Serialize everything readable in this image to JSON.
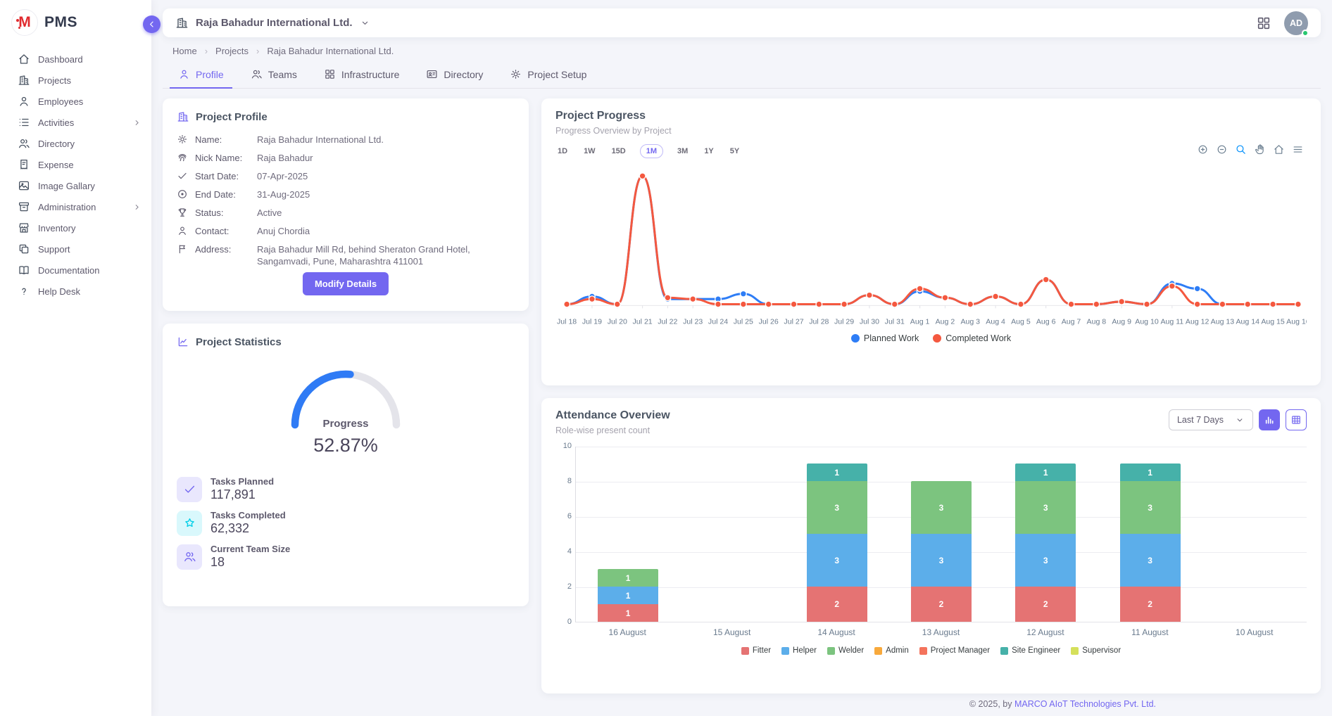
{
  "brand": {
    "logo_mark": "M",
    "logo_text": "PMS"
  },
  "sidebar": {
    "items": [
      {
        "label": "Dashboard",
        "icon": "home",
        "chevron": false
      },
      {
        "label": "Projects",
        "icon": "buildings",
        "chevron": false
      },
      {
        "label": "Employees",
        "icon": "user",
        "chevron": false
      },
      {
        "label": "Activities",
        "icon": "list",
        "chevron": true
      },
      {
        "label": "Directory",
        "icon": "users",
        "chevron": false
      },
      {
        "label": "Expense",
        "icon": "receipt",
        "chevron": false
      },
      {
        "label": "Image Gallary",
        "icon": "photo",
        "chevron": false
      },
      {
        "label": "Administration",
        "icon": "archive",
        "chevron": true
      },
      {
        "label": "Inventory",
        "icon": "store",
        "chevron": false
      },
      {
        "label": "Support",
        "icon": "copy",
        "chevron": false
      },
      {
        "label": "Documentation",
        "icon": "book",
        "chevron": false
      },
      {
        "label": "Help Desk",
        "icon": "help",
        "chevron": false
      }
    ]
  },
  "header": {
    "company_selector": {
      "label": "Raja Bahadur International Ltd.",
      "icon": "buildings"
    },
    "avatar": {
      "initials": "AD",
      "status_color": "#28c76f"
    }
  },
  "breadcrumb": {
    "items": [
      "Home",
      "Projects",
      "Raja Bahadur International Ltd."
    ],
    "separator": "›"
  },
  "tabs": [
    {
      "label": "Profile",
      "icon": "user",
      "active": true
    },
    {
      "label": "Teams",
      "icon": "users",
      "active": false
    },
    {
      "label": "Infrastructure",
      "icon": "grid",
      "active": false
    },
    {
      "label": "Directory",
      "icon": "id-card",
      "active": false
    },
    {
      "label": "Project Setup",
      "icon": "gear",
      "active": false
    }
  ],
  "profile_card": {
    "title": "Project Profile",
    "fields": [
      {
        "icon": "gear",
        "label": "Name:",
        "value": "Raja Bahadur International Ltd."
      },
      {
        "icon": "fingerprint",
        "label": "Nick Name:",
        "value": "Raja Bahadur"
      },
      {
        "icon": "check",
        "label": "Start Date:",
        "value": "07-Apr-2025"
      },
      {
        "icon": "target",
        "label": "End Date:",
        "value": "31-Aug-2025"
      },
      {
        "icon": "trophy",
        "label": "Status:",
        "value": "Active"
      },
      {
        "icon": "user",
        "label": "Contact:",
        "value": "Anuj Chordia"
      },
      {
        "icon": "flag",
        "label": "Address:",
        "value": "Raja Bahadur Mill Rd, behind Sheraton Grand Hotel, Sangamvadi, Pune, Maharashtra 411001"
      }
    ],
    "button": "Modify Details"
  },
  "stats_card": {
    "title": "Project Statistics",
    "gauge": {
      "label": "Progress",
      "value": "52.87%",
      "percent": 52.87,
      "color": "#2f7bf5",
      "track": "#e4e4ea"
    },
    "items": [
      {
        "icon": "check",
        "label": "Tasks Planned",
        "value": "117,891",
        "bg": "#e9e7fd",
        "fg": "#7367f0"
      },
      {
        "icon": "star",
        "label": "Tasks Completed",
        "value": "62,332",
        "bg": "#d9f8fc",
        "fg": "#00cfe8"
      },
      {
        "icon": "users",
        "label": "Current Team Size",
        "value": "18",
        "bg": "#e9e7fd",
        "fg": "#7367f0"
      }
    ]
  },
  "progress_card": {
    "title": "Project Progress",
    "subtitle": "Progress Overview by Project",
    "ranges": [
      "1D",
      "1W",
      "15D",
      "1M",
      "3M",
      "1Y",
      "5Y"
    ],
    "active_range": "1M",
    "toolbar": [
      "zoom-in",
      "zoom-out",
      "selection-zoom",
      "pan",
      "home",
      "menu"
    ]
  },
  "attendance_card": {
    "title": "Attendance Overview",
    "subtitle": "Role-wise present count",
    "select_value": "Last 7 Days",
    "view_buttons": [
      {
        "icon": "bar-chart",
        "active": true
      },
      {
        "icon": "table",
        "active": false
      }
    ]
  },
  "footer": {
    "prefix": "© 2025, by ",
    "link": "MARCO AIoT Technologies Pvt. Ltd."
  },
  "chart_data": [
    {
      "id": "project-progress",
      "type": "line",
      "x": [
        "Jul 18",
        "Jul 19",
        "Jul 20",
        "Jul 21",
        "Jul 22",
        "Jul 23",
        "Jul 24",
        "Jul 25",
        "Jul 26",
        "Jul 27",
        "Jul 28",
        "Jul 29",
        "Jul 30",
        "Jul 31",
        "Aug 1",
        "Aug 2",
        "Aug 3",
        "Aug 4",
        "Aug 5",
        "Aug 6",
        "Aug 7",
        "Aug 8",
        "Aug 9",
        "Aug 10",
        "Aug 11",
        "Aug 12",
        "Aug 13",
        "Aug 14",
        "Aug 15",
        "Aug 16"
      ],
      "series": [
        {
          "name": "Planned Work",
          "color": "#2e7df6",
          "values": [
            1,
            7,
            1,
            100,
            5,
            5,
            5,
            9,
            1,
            1,
            1,
            1,
            8,
            1,
            11,
            6,
            1,
            7,
            1,
            20,
            1,
            1,
            3,
            1,
            17,
            13,
            1,
            1,
            1,
            1
          ]
        },
        {
          "name": "Completed Work",
          "color": "#f4583f",
          "values": [
            1,
            5,
            1,
            100,
            6,
            5,
            1,
            1,
            1,
            1,
            1,
            1,
            8,
            1,
            13,
            6,
            1,
            7,
            1,
            20,
            1,
            1,
            3,
            1,
            15,
            1,
            1,
            1,
            1,
            1
          ]
        }
      ],
      "ylim": [
        0,
        105
      ],
      "legend_position": "bottom",
      "grid": false
    },
    {
      "id": "attendance",
      "type": "bar",
      "stacked": true,
      "categories": [
        "16 August",
        "15 August",
        "14 August",
        "13 August",
        "12 August",
        "11 August",
        "10 August"
      ],
      "series": [
        {
          "name": "Fitter",
          "color": "#e57373",
          "values": [
            1,
            0,
            2,
            2,
            2,
            2,
            0
          ]
        },
        {
          "name": "Helper",
          "color": "#5caeea",
          "values": [
            1,
            0,
            3,
            3,
            3,
            3,
            0
          ]
        },
        {
          "name": "Welder",
          "color": "#7cc47f",
          "values": [
            1,
            0,
            3,
            3,
            3,
            3,
            0
          ]
        },
        {
          "name": "Admin",
          "color": "#f8a93c",
          "values": [
            0,
            0,
            0,
            0,
            0,
            0,
            0
          ]
        },
        {
          "name": "Project Manager",
          "color": "#f4735c",
          "values": [
            0,
            0,
            0,
            0,
            0,
            0,
            0
          ]
        },
        {
          "name": "Site Engineer",
          "color": "#46b1a9",
          "values": [
            0,
            0,
            1,
            0,
            1,
            1,
            0
          ]
        },
        {
          "name": "Supervisor",
          "color": "#d5e05b",
          "values": [
            0,
            0,
            0,
            0,
            0,
            0,
            0
          ]
        }
      ],
      "ylim": [
        0,
        10
      ],
      "yticks": [
        0,
        2,
        4,
        6,
        8,
        10
      ],
      "grid": true,
      "legend_position": "bottom"
    }
  ]
}
